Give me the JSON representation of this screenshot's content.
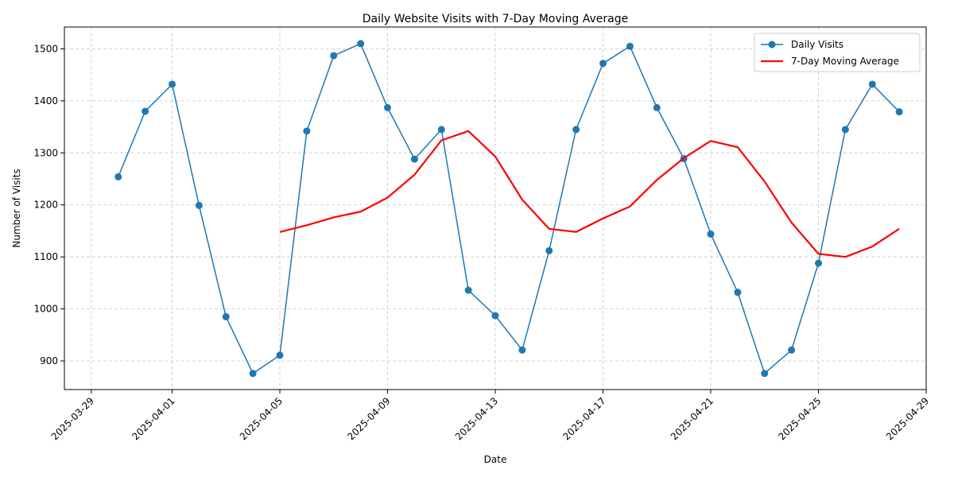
{
  "chart_data": {
    "type": "line",
    "title": "Daily Website Visits with 7-Day Moving Average",
    "xlabel": "Date",
    "ylabel": "Number of Visits",
    "x_range": [
      "2025-03-28",
      "2025-04-29"
    ],
    "ylim": [
      845,
      1542
    ],
    "x_ticks": [
      "2025-03-29",
      "2025-04-01",
      "2025-04-05",
      "2025-04-09",
      "2025-04-13",
      "2025-04-17",
      "2025-04-21",
      "2025-04-25",
      "2025-04-29"
    ],
    "y_ticks": [
      900,
      1000,
      1100,
      1200,
      1300,
      1400,
      1500
    ],
    "grid": true,
    "legend_position": "top-right",
    "series": [
      {
        "name": "Daily Visits",
        "color": "#1f77b4",
        "marker": "circle",
        "points": [
          [
            "2025-03-30",
            1254
          ],
          [
            "2025-03-31",
            1380
          ],
          [
            "2025-04-01",
            1432
          ],
          [
            "2025-04-02",
            1199
          ],
          [
            "2025-04-03",
            985
          ],
          [
            "2025-04-04",
            876
          ],
          [
            "2025-04-05",
            911
          ],
          [
            "2025-04-06",
            1342
          ],
          [
            "2025-04-07",
            1487
          ],
          [
            "2025-04-08",
            1510
          ],
          [
            "2025-04-09",
            1387
          ],
          [
            "2025-04-10",
            1288
          ],
          [
            "2025-04-11",
            1345
          ],
          [
            "2025-04-12",
            1036
          ],
          [
            "2025-04-13",
            987
          ],
          [
            "2025-04-14",
            921
          ],
          [
            "2025-04-15",
            1112
          ],
          [
            "2025-04-16",
            1345
          ],
          [
            "2025-04-17",
            1472
          ],
          [
            "2025-04-18",
            1505
          ],
          [
            "2025-04-19",
            1387
          ],
          [
            "2025-04-20",
            1289
          ],
          [
            "2025-04-21",
            1144
          ],
          [
            "2025-04-22",
            1032
          ],
          [
            "2025-04-23",
            876
          ],
          [
            "2025-04-24",
            921
          ],
          [
            "2025-04-25",
            1088
          ],
          [
            "2025-04-26",
            1345
          ],
          [
            "2025-04-27",
            1432
          ],
          [
            "2025-04-28",
            1379
          ]
        ]
      },
      {
        "name": "7-Day Moving Average",
        "color": "#ff0000",
        "marker": "none",
        "points": [
          [
            "2025-04-05",
            1148
          ],
          [
            "2025-04-06",
            1161
          ],
          [
            "2025-04-07",
            1176
          ],
          [
            "2025-04-08",
            1187
          ],
          [
            "2025-04-09",
            1214
          ],
          [
            "2025-04-10",
            1258
          ],
          [
            "2025-04-11",
            1324
          ],
          [
            "2025-04-12",
            1342
          ],
          [
            "2025-04-13",
            1293
          ],
          [
            "2025-04-14",
            1210
          ],
          [
            "2025-04-15",
            1154
          ],
          [
            "2025-04-16",
            1148
          ],
          [
            "2025-04-17",
            1174
          ],
          [
            "2025-04-18",
            1197
          ],
          [
            "2025-04-19",
            1248
          ],
          [
            "2025-04-20",
            1290
          ],
          [
            "2025-04-21",
            1323
          ],
          [
            "2025-04-22",
            1311
          ],
          [
            "2025-04-23",
            1245
          ],
          [
            "2025-04-24",
            1166
          ],
          [
            "2025-04-25",
            1106
          ],
          [
            "2025-04-26",
            1100
          ],
          [
            "2025-04-27",
            1120
          ],
          [
            "2025-04-28",
            1154
          ]
        ]
      }
    ]
  }
}
